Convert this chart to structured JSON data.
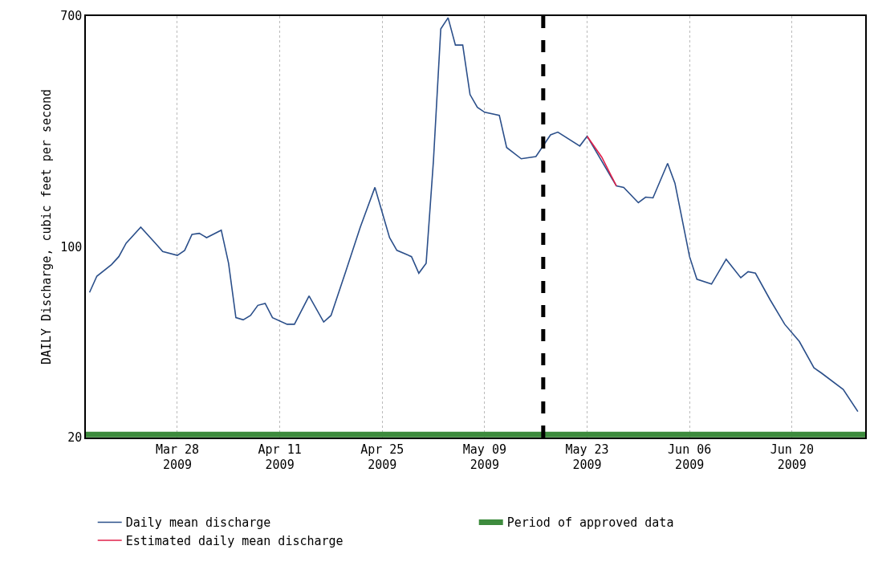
{
  "chart_data": {
    "type": "line",
    "ylabel": "DAILY Discharge, cubic feet per second",
    "series": [
      {
        "name": "Daily mean discharge",
        "color": "#2b4f8a",
        "x": [
          "2009-03-16",
          "2009-03-17",
          "2009-03-19",
          "2009-03-20",
          "2009-03-21",
          "2009-03-23",
          "2009-03-25",
          "2009-03-26",
          "2009-03-28",
          "2009-03-29",
          "2009-03-30",
          "2009-03-31",
          "2009-04-01",
          "2009-04-03",
          "2009-04-04",
          "2009-04-05",
          "2009-04-06",
          "2009-04-07",
          "2009-04-08",
          "2009-04-09",
          "2009-04-10",
          "2009-04-12",
          "2009-04-13",
          "2009-04-15",
          "2009-04-17",
          "2009-04-18",
          "2009-04-20",
          "2009-04-22",
          "2009-04-24",
          "2009-04-26",
          "2009-04-27",
          "2009-04-29",
          "2009-04-30",
          "2009-05-01",
          "2009-05-02",
          "2009-05-03",
          "2009-05-04",
          "2009-05-05",
          "2009-05-06",
          "2009-05-07",
          "2009-05-08",
          "2009-05-09",
          "2009-05-11",
          "2009-05-12",
          "2009-05-14",
          "2009-05-16",
          "2009-05-18",
          "2009-05-19",
          "2009-05-22",
          "2009-05-23",
          "2009-05-27",
          "2009-05-28",
          "2009-05-30",
          "2009-05-31",
          "2009-06-01",
          "2009-06-03",
          "2009-06-04",
          "2009-06-06",
          "2009-06-07",
          "2009-06-09",
          "2009-06-11",
          "2009-06-13",
          "2009-06-14",
          "2009-06-15",
          "2009-06-17",
          "2009-06-19",
          "2009-06-21",
          "2009-06-23",
          "2009-06-24",
          "2009-06-27",
          "2009-06-29"
        ],
        "values": [
          68,
          78,
          86,
          92,
          103,
          118,
          103,
          96,
          93,
          97,
          111,
          112,
          108,
          115,
          87,
          55,
          54,
          56,
          61,
          62,
          55,
          52,
          52,
          66,
          53,
          56,
          81,
          118,
          165,
          108,
          97,
          92,
          80,
          87,
          207,
          628,
          690,
          548,
          548,
          361,
          324,
          311,
          303,
          231,
          210,
          214,
          257,
          263,
          234,
          254,
          167,
          165,
          145,
          152,
          151,
          202,
          171,
          92,
          76,
          73,
          90,
          77,
          81,
          80,
          64,
          52,
          45,
          36,
          34.5,
          30,
          24.9
        ]
      },
      {
        "name": "Period of approved data",
        "color": "#3d8b3d",
        "x": [
          "2009-03-15T12:00",
          "2009-06-30"
        ],
        "values": [
          20.5,
          20.5
        ]
      },
      {
        "name": "Estimated daily mean discharge",
        "color": "#e0204a",
        "x": [
          "2009-05-23",
          "2009-05-25",
          "2009-05-27"
        ],
        "values": [
          254,
          213,
          167
        ]
      }
    ],
    "xlim": [
      "2009-03-15T12:00",
      "2009-06-30"
    ],
    "xticks": [
      {
        "value": "2009-03-28",
        "label": "Mar 28\n2009"
      },
      {
        "value": "2009-04-11",
        "label": "Apr 11\n2009"
      },
      {
        "value": "2009-04-25",
        "label": "Apr 25\n2009"
      },
      {
        "value": "2009-05-09",
        "label": "May 09\n2009"
      },
      {
        "value": "2009-05-23",
        "label": "May 23\n2009"
      },
      {
        "value": "2009-06-06",
        "label": "Jun 06\n2009"
      },
      {
        "value": "2009-06-20",
        "label": "Jun 20\n2009"
      }
    ],
    "ylim": [
      20,
      700
    ],
    "yticks": [
      20,
      100,
      700
    ],
    "log": true,
    "grid": "x",
    "line_style": "solid",
    "ref_lines": [
      {
        "axis": "x",
        "value": "2009-05-17",
        "color": "#000000",
        "line_style": "dashed"
      }
    ],
    "legend": "bottom"
  }
}
